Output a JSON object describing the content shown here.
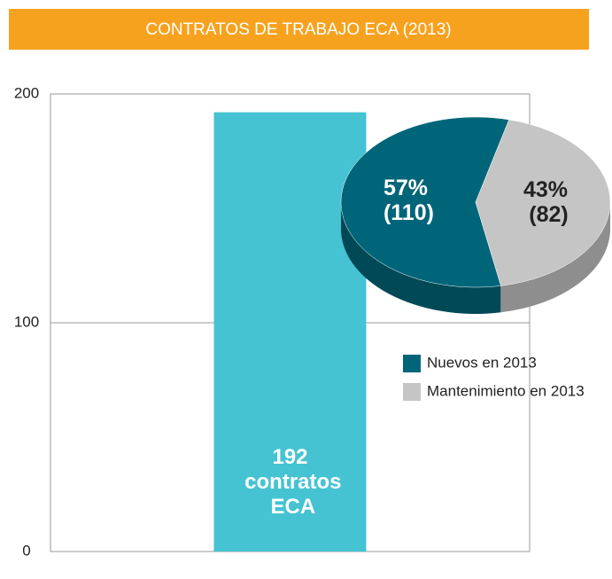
{
  "chart_data": [
    {
      "type": "bar",
      "title": "CONTRATOS DE TRABAJO ECA (2013)",
      "categories": [
        null
      ],
      "values": [
        192
      ],
      "value_labels": [
        "192 contratos ECA"
      ],
      "color": "#45c3d3",
      "ylim": [
        0,
        200
      ],
      "yticks": [
        0,
        100,
        200
      ],
      "grid": true
    },
    {
      "type": "pie",
      "categories": [
        "Nuevos en 2013",
        "Mantenimiento en 2013"
      ],
      "values": [
        57,
        43
      ],
      "value_labels": [
        "57% (110)",
        "43% (82)"
      ],
      "colors": [
        "#006579",
        "#c5c5c5"
      ],
      "legend": "right"
    }
  ]
}
